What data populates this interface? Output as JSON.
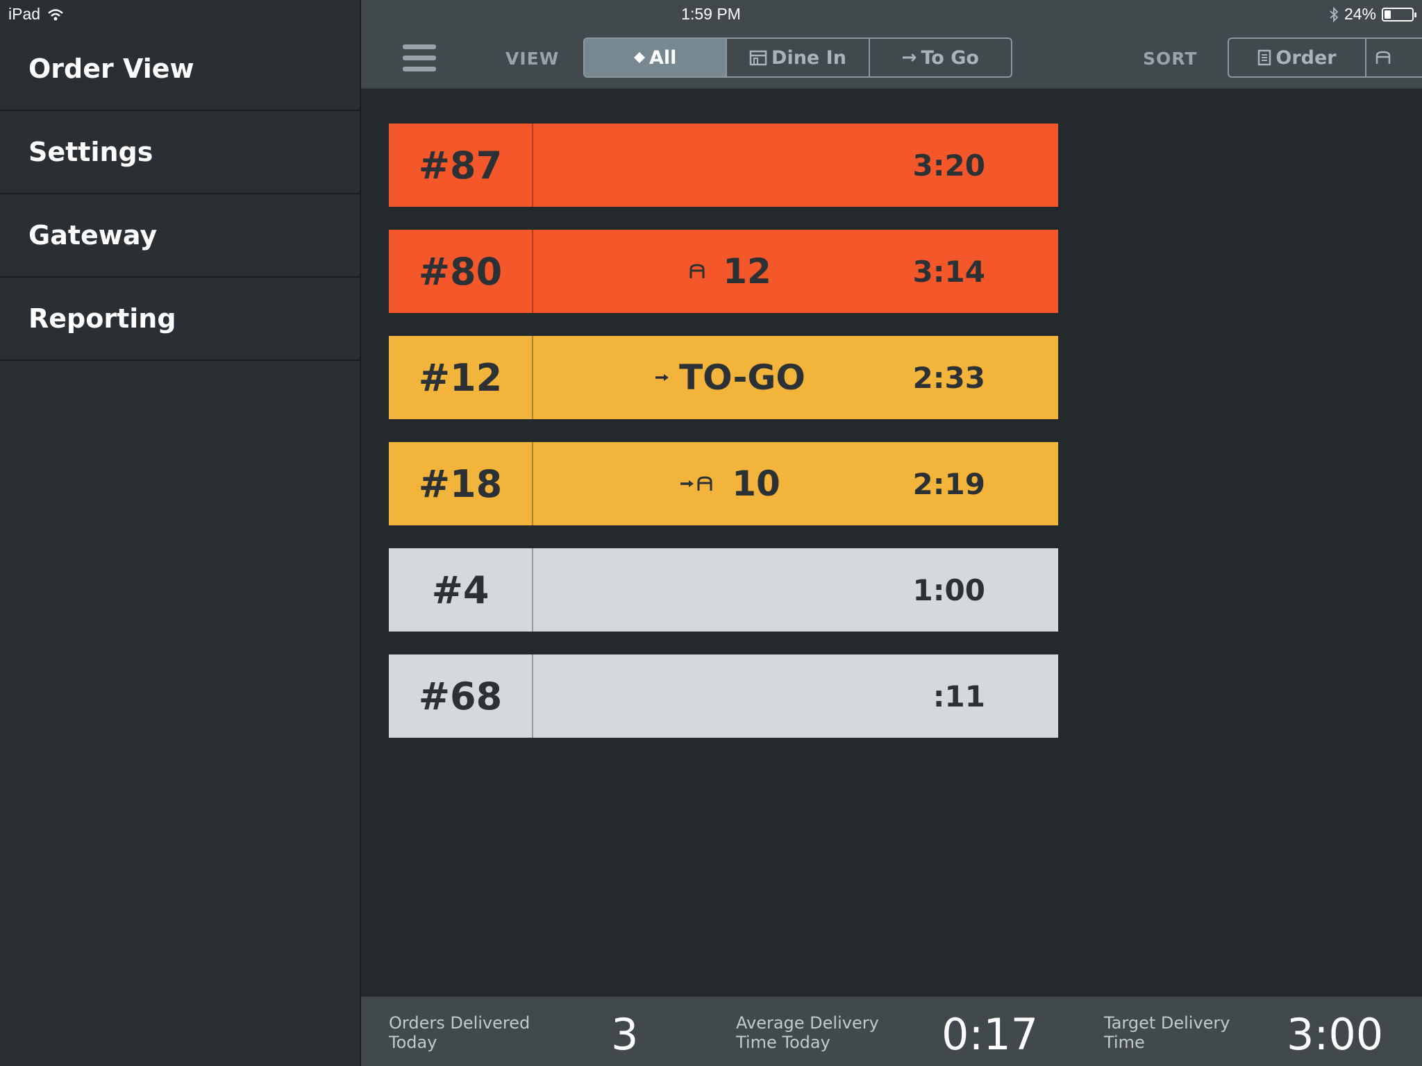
{
  "status_bar": {
    "device": "iPad",
    "time": "1:59 PM",
    "battery": "24%",
    "battery_level": 0.24
  },
  "sidebar": {
    "items": [
      {
        "label": "Order View"
      },
      {
        "label": "Settings"
      },
      {
        "label": "Gateway"
      },
      {
        "label": "Reporting"
      }
    ]
  },
  "toolbar": {
    "view_label": "VIEW",
    "view_options": [
      {
        "label": "All",
        "icon": "diamond-icon",
        "selected": true
      },
      {
        "label": "Dine In",
        "icon": "building-icon",
        "selected": false
      },
      {
        "label": "To Go",
        "icon": "arrow-right-icon",
        "selected": false
      }
    ],
    "sort_label": "SORT",
    "sort_options": [
      {
        "label": "Order",
        "icon": "list-icon"
      },
      {
        "label": "",
        "icon": "table-icon"
      }
    ]
  },
  "orders": [
    {
      "number": "#87",
      "detail": "",
      "icon": "",
      "time": "3:20",
      "color": "#f4582a"
    },
    {
      "number": "#80",
      "detail": "12",
      "icon": "table-icon",
      "time": "3:14",
      "color": "#f4582a"
    },
    {
      "number": "#12",
      "detail": "TO-GO",
      "icon": "arrow-right-icon",
      "time": "2:33",
      "color": "#f2b43a"
    },
    {
      "number": "#18",
      "detail": "10",
      "icon": "arrow-table-icon",
      "time": "2:19",
      "color": "#f2b43a"
    },
    {
      "number": "#4",
      "detail": "",
      "icon": "",
      "time": "1:00",
      "color": "#d3d9dc"
    },
    {
      "number": "#68",
      "detail": "",
      "icon": "",
      "time": ":11",
      "color": "#d3d9dc"
    }
  ],
  "footer": {
    "orders_delivered_label": "Orders Delivered Today",
    "orders_delivered_value": "3",
    "avg_delivery_label": "Average Delivery Time Today",
    "avg_delivery_value": "0:17",
    "target_delivery_label": "Target Delivery Time",
    "target_delivery_value": "3:00"
  }
}
